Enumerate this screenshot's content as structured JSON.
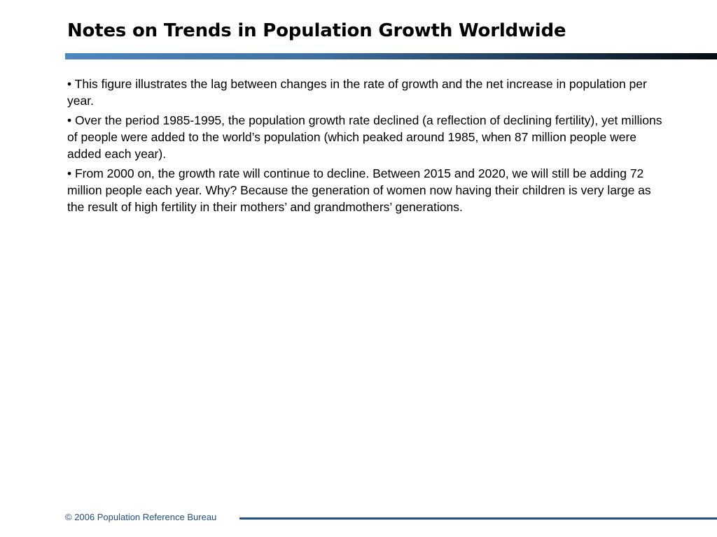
{
  "slide": {
    "title": "Notes on Trends in Population Growth Worldwide",
    "notes": [
      "• This figure illustrates the lag between changes in the rate of growth and the net increase in population per year.",
      "• Over the period 1985-1995, the population growth rate declined (a reflection of declining fertility), yet millions of people were added to the world’s population (which peaked around 1985, when 87 million people were added each year).",
      "• From 2000 on, the growth rate will continue to decline. Between 2015 and 2020, we will still be adding 72 million people each year. Why? Because the generation of women now having their children is very large as the result of high fertility in their mothers’ and grandmothers’ generations."
    ]
  },
  "footer": {
    "copyright": "© 2006 Population Reference Bureau"
  },
  "colors": {
    "accent": "#1f4f84",
    "rule_start": "#4f86c0",
    "rule_end": "#050a10"
  }
}
